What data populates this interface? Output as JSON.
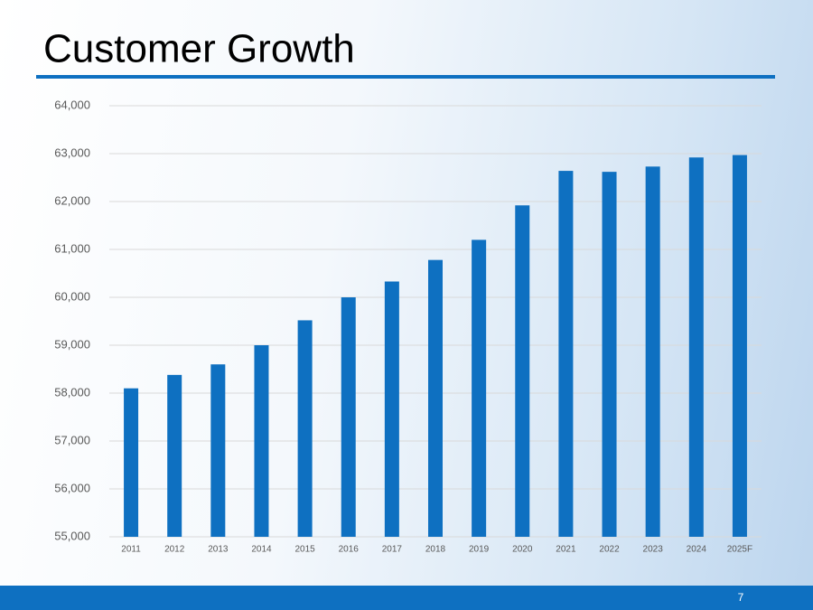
{
  "chart_data": {
    "type": "bar",
    "title": "Customer Growth",
    "categories": [
      "2011",
      "2012",
      "2013",
      "2014",
      "2015",
      "2016",
      "2017",
      "2018",
      "2019",
      "2020",
      "2021",
      "2022",
      "2023",
      "2024",
      "2025F"
    ],
    "values": [
      58100,
      58380,
      58600,
      59000,
      59520,
      60000,
      60330,
      60780,
      61200,
      61920,
      62640,
      62620,
      62730,
      62920,
      62970
    ],
    "color": "#0e70c1",
    "ylim": [
      55000,
      64000
    ],
    "yticks": [
      {
        "value": 55000,
        "label": "55,000"
      },
      {
        "value": 56000,
        "label": "56,000"
      },
      {
        "value": 57000,
        "label": "57,000"
      },
      {
        "value": 58000,
        "label": "58,000"
      },
      {
        "value": 59000,
        "label": "59,000"
      },
      {
        "value": 60000,
        "label": "60,000"
      },
      {
        "value": 61000,
        "label": "61,000"
      },
      {
        "value": 62000,
        "label": "62,000"
      },
      {
        "value": 63000,
        "label": "63,000"
      },
      {
        "value": 64000,
        "label": "64,000"
      }
    ],
    "grid": true
  },
  "slide": {
    "page_number": "7"
  }
}
